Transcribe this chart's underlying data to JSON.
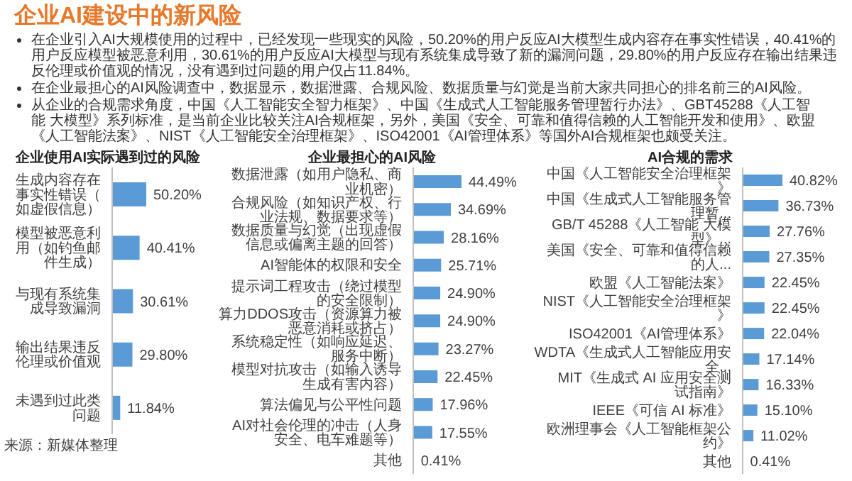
{
  "chart_data": [
    {
      "type": "other",
      "title": "企业AI建设中的新风险",
      "annotations": [
        "在企业引入AI大规模使用的过程中，已经发现一些现实的风险，50.20%的用户反应AI大模型生成内容存在事实性错误，40.41%的用户反应模型被恶意利用，30.61%的用户反应AI大模型与现有系统集成导致了新的漏洞问题，29.80%的用户反应存在输出结果违反伦理或价值观的情况，没有遇到过问题的用户仅占11.84%。",
        "在企业最担心的AI风险调查中，数据显示，数据泄露、合规风险、数据质量与幻觉是当前大家共同担心的排名前三的AI风险。",
        "从企业的合规需求角度，中国《人工智能安全智力框架》、中国《生成式人工智能服务管理暂行办法》、GBT45288《人工智能 大模型》系列标准，是当前企业比较关注AI合规框架，另外，美国《安全、可靠和值得信赖的人工智能开发和使用》、欧盟《人工智能法案》、NIST《人工智能安全治理框架》、ISO42001《AI管理体系》等国外AI合规框架也颇受关注。"
      ]
    },
    {
      "type": "bar",
      "orientation": "horizontal",
      "title": "企业使用AI实际遇到过的风险",
      "color": "#5b9bd5",
      "annotations": [
        "来源：新媒体整理"
      ],
      "categories": [
        "生成内容存在事实性错误（如虚假信息）",
        "模型被恶意利用（如钓鱼邮件生成）",
        "与现有系统集成导致漏洞",
        "输出结果违反伦理或价值观",
        "未遇到过此类问题"
      ],
      "values": [
        50.2,
        40.41,
        30.61,
        29.8,
        11.84
      ],
      "value_labels": [
        "50.20%",
        "40.41%",
        "30.61%",
        "29.80%",
        "11.84%"
      ]
    },
    {
      "type": "bar",
      "orientation": "horizontal",
      "title": "企业最担心的AI风险",
      "color": "#5b9bd5",
      "categories": [
        "数据泄露（如用户隐私、商业机密）",
        "合规风险（如知识产权、行业法规、数据要求等）",
        "数据质量与幻觉（出现虚假信息或偏离主题的回答）",
        "AI智能体的权限和安全",
        "提示词工程攻击（绕过模型的安全限制）",
        "算力DDOS攻击（资源算力被恶意消耗或挤占）",
        "系统稳定性（如响应延迟、服务中断）",
        "模型对抗攻击（如输入诱导生成有害内容）",
        "算法偏见与公平性问题",
        "AI对社会伦理的冲击（人身安全、电车难题等）",
        "其他"
      ],
      "values": [
        44.49,
        34.69,
        28.16,
        25.71,
        24.9,
        24.9,
        23.27,
        22.45,
        17.96,
        17.55,
        0.41
      ],
      "value_labels": [
        "44.49%",
        "34.69%",
        "28.16%",
        "25.71%",
        "24.90%",
        "24.90%",
        "23.27%",
        "22.45%",
        "17.96%",
        "17.55%",
        "0.41%"
      ]
    },
    {
      "type": "bar",
      "orientation": "horizontal",
      "title": "AI合规的需求",
      "color": "#5b9bd5",
      "categories": [
        "中国《人工智能安全治理框架》",
        "中国《生成式人工智能服务管理暂...",
        "GB/T 45288《人工智能 大模型》...",
        "美国《安全、可靠和值得信赖的人...",
        "欧盟《人工智能法案》",
        "NIST《人工智能安全治理框架》",
        "ISO42001《AI管理体系》",
        "WDTA《生成式人工智能应用安全...",
        "MIT《生成式 AI 应用安全测试指南》",
        "IEEE《可信 AI 标准》",
        "欧洲理事会《人工智能框架公约》",
        "其他"
      ],
      "values": [
        40.82,
        36.73,
        27.76,
        27.35,
        22.45,
        22.45,
        22.04,
        17.14,
        16.33,
        15.1,
        11.02,
        0.41
      ],
      "value_labels": [
        "40.82%",
        "36.73%",
        "27.76%",
        "27.35%",
        "22.45%",
        "22.45%",
        "22.04%",
        "17.14%",
        "16.33%",
        "15.10%",
        "11.02%",
        "0.41%"
      ]
    }
  ]
}
